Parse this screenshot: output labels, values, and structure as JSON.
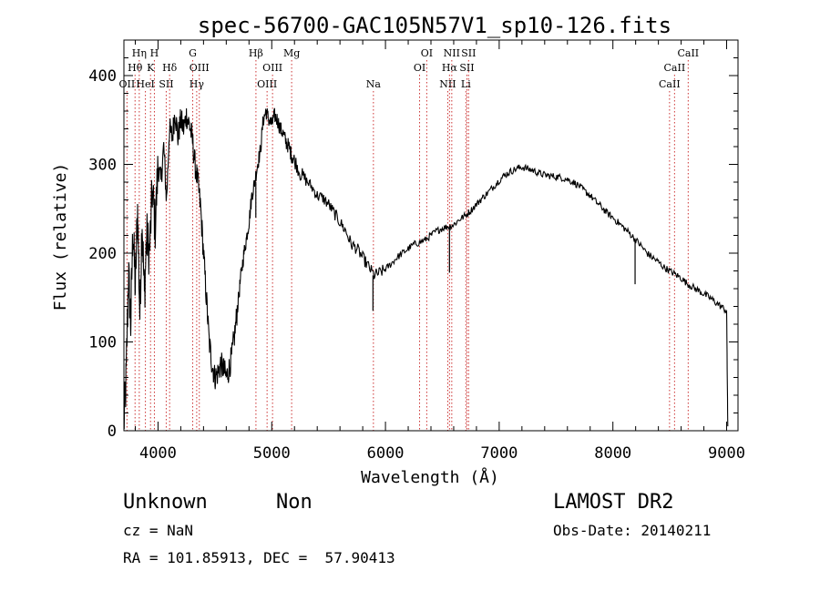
{
  "chart_data": {
    "type": "line",
    "title": "spec-56700-GAC105N57V1_sp10-126.fits",
    "xlabel": "Wavelength (Å)",
    "ylabel": "Flux (relative)",
    "xlim": [
      3700,
      9100
    ],
    "ylim": [
      0,
      440
    ],
    "x_ticks": [
      4000,
      5000,
      6000,
      7000,
      8000,
      9000
    ],
    "y_ticks": [
      0,
      100,
      200,
      300,
      400
    ],
    "grid": false,
    "line_color": "#000000",
    "marker_color": "#cc3333",
    "spectrum_points": [
      [
        3700,
        5
      ],
      [
        3720,
        60
      ],
      [
        3740,
        180
      ],
      [
        3760,
        120
      ],
      [
        3780,
        230
      ],
      [
        3800,
        160
      ],
      [
        3820,
        250
      ],
      [
        3840,
        130
      ],
      [
        3860,
        240
      ],
      [
        3880,
        150
      ],
      [
        3900,
        220
      ],
      [
        3925,
        200
      ],
      [
        3950,
        270
      ],
      [
        3975,
        230
      ],
      [
        4000,
        300
      ],
      [
        4025,
        280
      ],
      [
        4050,
        320
      ],
      [
        4075,
        260
      ],
      [
        4100,
        340
      ],
      [
        4125,
        330
      ],
      [
        4150,
        360
      ],
      [
        4175,
        330
      ],
      [
        4200,
        350
      ],
      [
        4225,
        340
      ],
      [
        4250,
        355
      ],
      [
        4275,
        345
      ],
      [
        4300,
        330
      ],
      [
        4325,
        300
      ],
      [
        4350,
        280
      ],
      [
        4375,
        250
      ],
      [
        4400,
        200
      ],
      [
        4425,
        150
      ],
      [
        4450,
        100
      ],
      [
        4475,
        75
      ],
      [
        4500,
        60
      ],
      [
        4525,
        65
      ],
      [
        4550,
        75
      ],
      [
        4575,
        70
      ],
      [
        4600,
        60
      ],
      [
        4625,
        70
      ],
      [
        4650,
        85
      ],
      [
        4675,
        110
      ],
      [
        4700,
        140
      ],
      [
        4725,
        170
      ],
      [
        4750,
        195
      ],
      [
        4775,
        215
      ],
      [
        4800,
        235
      ],
      [
        4825,
        265
      ],
      [
        4850,
        280
      ],
      [
        4875,
        300
      ],
      [
        4900,
        315
      ],
      [
        4925,
        350
      ],
      [
        4950,
        360
      ],
      [
        4975,
        350
      ],
      [
        5000,
        345
      ],
      [
        5025,
        355
      ],
      [
        5050,
        350
      ],
      [
        5075,
        340
      ],
      [
        5100,
        335
      ],
      [
        5125,
        325
      ],
      [
        5150,
        320
      ],
      [
        5175,
        310
      ],
      [
        5200,
        305
      ],
      [
        5250,
        290
      ],
      [
        5300,
        282
      ],
      [
        5350,
        275
      ],
      [
        5400,
        265
      ],
      [
        5450,
        262
      ],
      [
        5500,
        255
      ],
      [
        5550,
        245
      ],
      [
        5600,
        235
      ],
      [
        5650,
        225
      ],
      [
        5700,
        210
      ],
      [
        5750,
        205
      ],
      [
        5800,
        195
      ],
      [
        5850,
        185
      ],
      [
        5900,
        175
      ],
      [
        5950,
        178
      ],
      [
        6000,
        182
      ],
      [
        6050,
        188
      ],
      [
        6100,
        195
      ],
      [
        6150,
        200
      ],
      [
        6200,
        205
      ],
      [
        6250,
        210
      ],
      [
        6300,
        212
      ],
      [
        6350,
        215
      ],
      [
        6400,
        220
      ],
      [
        6450,
        225
      ],
      [
        6500,
        228
      ],
      [
        6550,
        230
      ],
      [
        6600,
        232
      ],
      [
        6650,
        238
      ],
      [
        6700,
        242
      ],
      [
        6750,
        248
      ],
      [
        6800,
        255
      ],
      [
        6850,
        262
      ],
      [
        6900,
        268
      ],
      [
        6950,
        275
      ],
      [
        7000,
        282
      ],
      [
        7050,
        288
      ],
      [
        7100,
        292
      ],
      [
        7150,
        295
      ],
      [
        7200,
        297
      ],
      [
        7250,
        295
      ],
      [
        7300,
        293
      ],
      [
        7350,
        290
      ],
      [
        7400,
        288
      ],
      [
        7450,
        287
      ],
      [
        7500,
        286
      ],
      [
        7550,
        285
      ],
      [
        7600,
        283
      ],
      [
        7650,
        280
      ],
      [
        7700,
        276
      ],
      [
        7750,
        270
      ],
      [
        7800,
        265
      ],
      [
        7850,
        258
      ],
      [
        7900,
        252
      ],
      [
        7950,
        245
      ],
      [
        8000,
        240
      ],
      [
        8050,
        234
      ],
      [
        8100,
        228
      ],
      [
        8150,
        222
      ],
      [
        8200,
        215
      ],
      [
        8250,
        208
      ],
      [
        8300,
        200
      ],
      [
        8350,
        195
      ],
      [
        8400,
        190
      ],
      [
        8450,
        184
      ],
      [
        8500,
        180
      ],
      [
        8550,
        176
      ],
      [
        8600,
        172
      ],
      [
        8650,
        166
      ],
      [
        8700,
        162
      ],
      [
        8750,
        158
      ],
      [
        8800,
        154
      ],
      [
        8850,
        150
      ],
      [
        8900,
        145
      ],
      [
        8950,
        140
      ],
      [
        9000,
        135
      ],
      [
        9010,
        5
      ]
    ],
    "absorption_dips": [
      {
        "x": 5890,
        "y": 135
      },
      {
        "x": 6563,
        "y": 178
      },
      {
        "x": 8195,
        "y": 165
      },
      {
        "x": 4860,
        "y": 240
      }
    ],
    "line_markers": [
      {
        "label": "OII",
        "wavelength": 3727,
        "row": 3
      },
      {
        "label": "Hθ",
        "wavelength": 3798,
        "row": 2
      },
      {
        "label": "Hη",
        "wavelength": 3835,
        "row": 1
      },
      {
        "label": "HeI",
        "wavelength": 3889,
        "row": 3
      },
      {
        "label": "K",
        "wavelength": 3934,
        "row": 2
      },
      {
        "label": "H",
        "wavelength": 3968,
        "row": 1
      },
      {
        "label": "SII",
        "wavelength": 4072,
        "row": 3
      },
      {
        "label": "Hδ",
        "wavelength": 4102,
        "row": 2
      },
      {
        "label": "G",
        "wavelength": 4305,
        "row": 1
      },
      {
        "label": "Hγ",
        "wavelength": 4340,
        "row": 3
      },
      {
        "label": "OIII",
        "wavelength": 4363,
        "row": 2
      },
      {
        "label": "Hβ",
        "wavelength": 4861,
        "row": 1
      },
      {
        "label": "OIII",
        "wavelength": 4959,
        "row": 3
      },
      {
        "label": "OIII",
        "wavelength": 5007,
        "row": 2
      },
      {
        "label": "Mg",
        "wavelength": 5175,
        "row": 1
      },
      {
        "label": "Na",
        "wavelength": 5894,
        "row": 3
      },
      {
        "label": "OI",
        "wavelength": 6300,
        "row": 2
      },
      {
        "label": "OI",
        "wavelength": 6363,
        "row": 1
      },
      {
        "label": "NII",
        "wavelength": 6548,
        "row": 3
      },
      {
        "label": "Hα",
        "wavelength": 6563,
        "row": 2
      },
      {
        "label": "NII",
        "wavelength": 6583,
        "row": 1
      },
      {
        "label": "Li",
        "wavelength": 6707,
        "row": 3
      },
      {
        "label": "SII",
        "wavelength": 6716,
        "row": 2
      },
      {
        "label": "SII",
        "wavelength": 6731,
        "row": 1
      },
      {
        "label": "CaII",
        "wavelength": 8498,
        "row": 3
      },
      {
        "label": "CaII",
        "wavelength": 8542,
        "row": 2
      },
      {
        "label": "CaII",
        "wavelength": 8662,
        "row": 1
      }
    ]
  },
  "info": {
    "object_class": "Unknown",
    "object_subclass": "Non",
    "survey": "LAMOST DR2",
    "cz": "cz = NaN",
    "obs_date": "Obs-Date: 20140211",
    "coords": "RA = 101.85913, DEC =  57.90413"
  }
}
